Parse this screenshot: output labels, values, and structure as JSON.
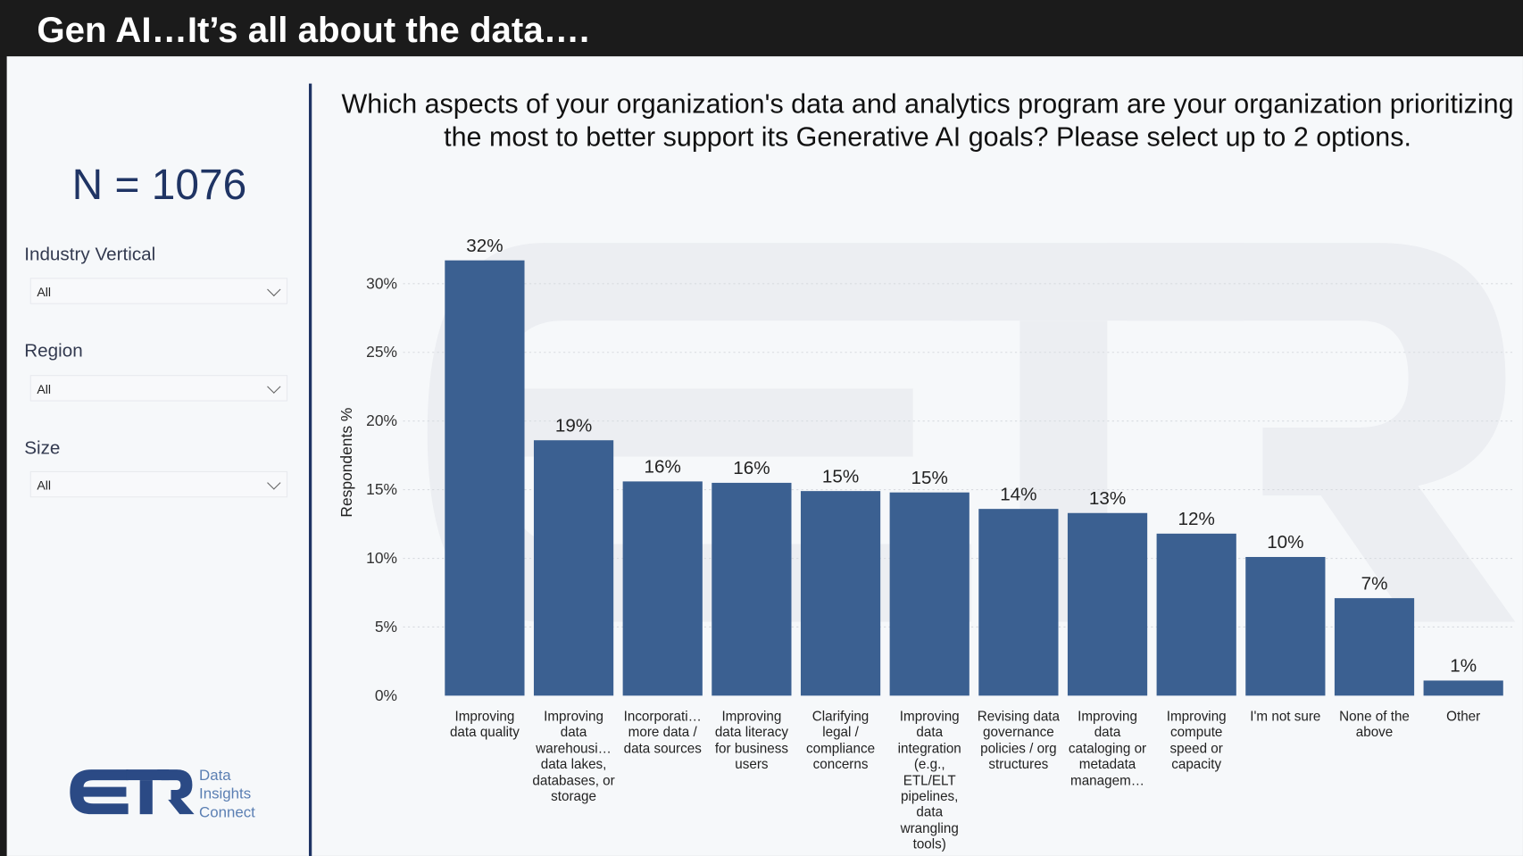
{
  "header": {
    "title": "Gen AI…It’s all about the data…."
  },
  "sidebar": {
    "sample_size": "N = 1076",
    "filters": [
      {
        "label": "Industry Vertical",
        "value": "All"
      },
      {
        "label": "Region",
        "value": "All"
      },
      {
        "label": "Size",
        "value": "All"
      }
    ],
    "logo": {
      "mark": "ETR",
      "tagline": [
        "Data",
        "Insights",
        "Connect"
      ]
    }
  },
  "colors": {
    "bar": "#3b6091",
    "accent": "#1f3464",
    "header_bg": "#1b1b1b"
  },
  "chart_data": {
    "type": "bar",
    "title": "Which aspects of your organization's data and analytics program are your organization prioritizing the most to better support its Generative AI goals? Please select up to 2 options.",
    "ylabel": "Respondents %",
    "xlabel": "",
    "ylim": [
      0,
      33
    ],
    "yticks": [
      "0%",
      "5%",
      "10%",
      "15%",
      "20%",
      "25%",
      "30%"
    ],
    "grid": true,
    "categories": [
      "Improving data quality",
      "Improving data warehousi… data lakes, databases, or storage",
      "Incorporati… more data / data sources",
      "Improving data literacy for business users",
      "Clarifying legal / compliance concerns",
      "Improving data integration (e.g., ETL/ELT pipelines, data wrangling tools)",
      "Revising data governance policies / org structures",
      "Improving data cataloging or metadata managem…",
      "Improving compute speed or capacity",
      "I'm not sure",
      "None of the above",
      "Other"
    ],
    "values": [
      31.7,
      18.6,
      15.6,
      15.5,
      14.9,
      14.8,
      13.6,
      13.3,
      11.8,
      10.1,
      7.1,
      1.1
    ],
    "data_labels": [
      "32%",
      "19%",
      "16%",
      "16%",
      "15%",
      "15%",
      "14%",
      "13%",
      "12%",
      "10%",
      "7%",
      "1%"
    ]
  }
}
